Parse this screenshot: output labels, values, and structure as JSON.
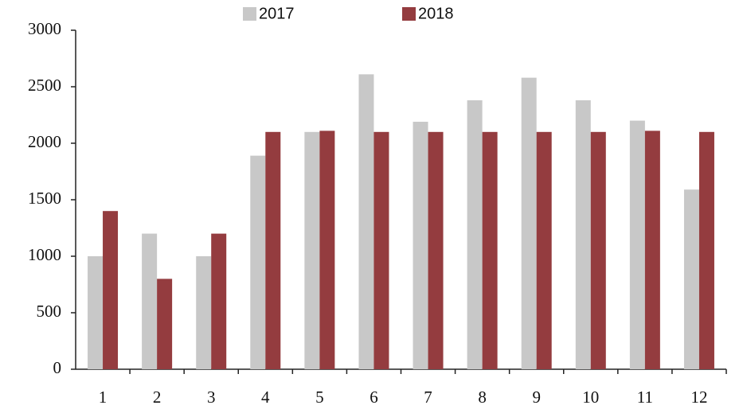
{
  "chart_data": {
    "type": "bar",
    "categories": [
      "1",
      "2",
      "3",
      "4",
      "5",
      "6",
      "7",
      "8",
      "9",
      "10",
      "11",
      "12"
    ],
    "series": [
      {
        "name": "2017",
        "color": "#c8c8c8",
        "values": [
          1000,
          1200,
          1000,
          1890,
          2100,
          2610,
          2190,
          2380,
          2580,
          2380,
          2200,
          1590
        ]
      },
      {
        "name": "2018",
        "color": "#943c3f",
        "values": [
          1400,
          800,
          1200,
          2100,
          2110,
          2100,
          2100,
          2100,
          2100,
          2100,
          2110,
          2100
        ]
      }
    ],
    "ylim": [
      0,
      3000
    ],
    "yticks": [
      0,
      500,
      1000,
      1500,
      2000,
      2500,
      3000
    ],
    "grid": false
  }
}
